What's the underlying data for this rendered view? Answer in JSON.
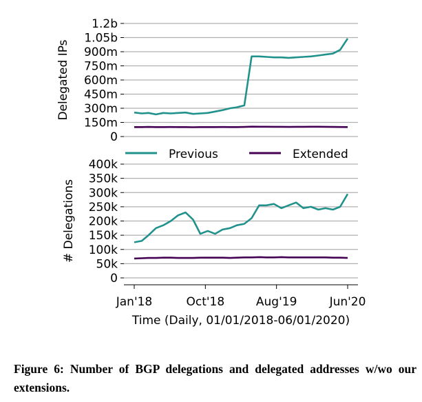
{
  "chart_data": [
    {
      "type": "line",
      "ylabel": "Delegated IPs",
      "xlabel": "",
      "yticks": [
        "0",
        "150m",
        "300m",
        "450m",
        "600m",
        "750m",
        "900m",
        "1.05b",
        "1.2b"
      ],
      "ytick_values": [
        0,
        150,
        300,
        450,
        600,
        750,
        900,
        1050,
        1200
      ],
      "ylim": [
        0,
        1200
      ],
      "y_unit": "millions",
      "x": [
        "2018-01-01",
        "2018-02-01",
        "2018-03-01",
        "2018-04-01",
        "2018-05-01",
        "2018-06-01",
        "2018-07-01",
        "2018-08-01",
        "2018-09-01",
        "2018-10-01",
        "2018-11-01",
        "2018-12-01",
        "2019-01-01",
        "2019-02-01",
        "2019-03-01",
        "2019-04-01",
        "2019-05-01",
        "2019-06-01",
        "2019-07-01",
        "2019-08-01",
        "2019-09-01",
        "2019-10-01",
        "2019-11-01",
        "2019-12-01",
        "2020-01-01",
        "2020-02-01",
        "2020-03-01",
        "2020-04-01",
        "2020-05-01",
        "2020-06-01"
      ],
      "series": [
        {
          "name": "Previous",
          "color": "#21918c",
          "values": [
            255,
            245,
            250,
            235,
            250,
            245,
            250,
            255,
            240,
            245,
            250,
            265,
            280,
            300,
            310,
            330,
            850,
            850,
            845,
            840,
            840,
            835,
            840,
            845,
            850,
            860,
            870,
            880,
            920,
            1040
          ]
        },
        {
          "name": "Extended",
          "color": "#440154",
          "values": [
            100,
            100,
            102,
            100,
            100,
            101,
            100,
            100,
            99,
            100,
            100,
            100,
            101,
            100,
            100,
            102,
            105,
            104,
            104,
            103,
            103,
            102,
            103,
            103,
            104,
            104,
            103,
            102,
            101,
            100
          ]
        }
      ],
      "grid": true
    },
    {
      "type": "line",
      "ylabel": "# Delegations",
      "xlabel": "Time (Daily, 01/01/2018-06/01/2020)",
      "yticks": [
        "0",
        "50k",
        "100k",
        "150k",
        "200k",
        "250k",
        "300k",
        "350k",
        "400k"
      ],
      "ytick_values": [
        0,
        50,
        100,
        150,
        200,
        250,
        300,
        350,
        400
      ],
      "ylim": [
        0,
        400
      ],
      "y_unit": "thousands",
      "xticks": [
        "Jan'18",
        "Oct'18",
        "Aug'19",
        "Jun'20"
      ],
      "x": [
        "2018-01-01",
        "2018-02-01",
        "2018-03-01",
        "2018-04-01",
        "2018-05-01",
        "2018-06-01",
        "2018-07-01",
        "2018-08-01",
        "2018-09-01",
        "2018-10-01",
        "2018-11-01",
        "2018-12-01",
        "2019-01-01",
        "2019-02-01",
        "2019-03-01",
        "2019-04-01",
        "2019-05-01",
        "2019-06-01",
        "2019-07-01",
        "2019-08-01",
        "2019-09-01",
        "2019-10-01",
        "2019-11-01",
        "2019-12-01",
        "2020-01-01",
        "2020-02-01",
        "2020-03-01",
        "2020-04-01",
        "2020-05-01",
        "2020-06-01"
      ],
      "series": [
        {
          "name": "Previous",
          "color": "#21918c",
          "values": [
            125,
            130,
            150,
            175,
            185,
            200,
            220,
            230,
            205,
            155,
            165,
            155,
            170,
            175,
            185,
            190,
            210,
            255,
            255,
            260,
            245,
            255,
            265,
            245,
            250,
            240,
            245,
            240,
            250,
            295
          ]
        },
        {
          "name": "Extended",
          "color": "#440154",
          "values": [
            68,
            69,
            70,
            70,
            71,
            71,
            70,
            70,
            70,
            71,
            71,
            71,
            71,
            70,
            71,
            72,
            72,
            73,
            72,
            72,
            73,
            72,
            72,
            72,
            72,
            72,
            72,
            71,
            71,
            70
          ]
        }
      ],
      "grid": true
    }
  ],
  "legend": {
    "previous": "Previous",
    "extended": "Extended"
  },
  "caption": "Figure 6: Number of BGP delegations and delegated addresses w/wo our extensions."
}
